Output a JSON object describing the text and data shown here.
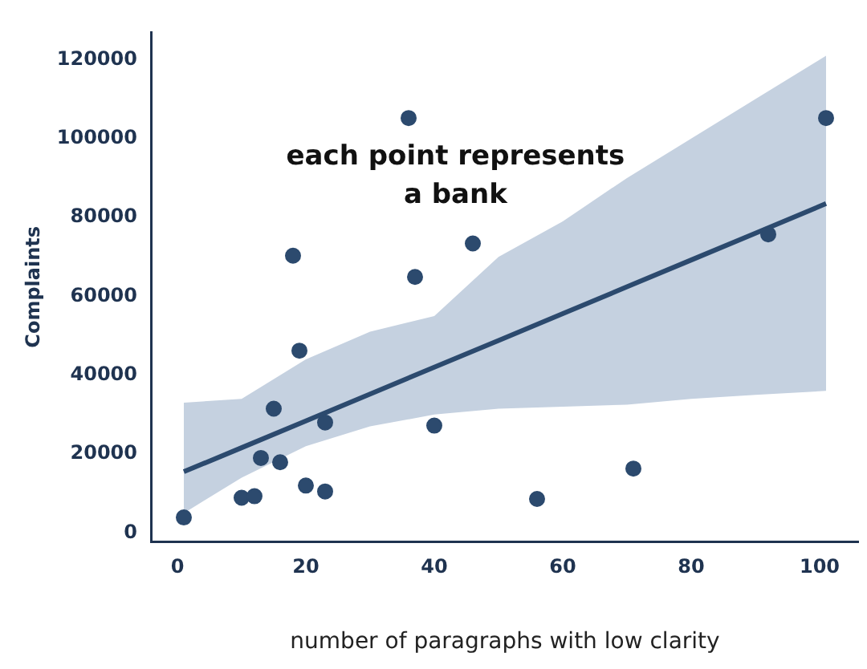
{
  "chart_data": {
    "type": "scatter",
    "xlabel": "number of paragraphs with low clarity",
    "ylabel": "Complaints",
    "annotations": [
      "each point represents\na bank"
    ],
    "xlim": [
      -4,
      106
    ],
    "ylim": [
      -2300,
      127000
    ],
    "xticks": [
      0,
      20,
      40,
      60,
      80,
      100
    ],
    "yticks": [
      0,
      20000,
      40000,
      60000,
      80000,
      100000,
      120000
    ],
    "grid": false,
    "legend": false,
    "marker": "circle",
    "series": [
      {
        "color": "#2c4a6e",
        "x": [
          1,
          10,
          12,
          13,
          15,
          16,
          19,
          20,
          23,
          23,
          40,
          56,
          71,
          36,
          18,
          37,
          46,
          101,
          92
        ],
        "values": [
          3900,
          8900,
          9300,
          19000,
          31500,
          17900,
          46200,
          12000,
          28000,
          10500,
          27200,
          8600,
          16300,
          105200,
          70300,
          64900,
          73400,
          105200,
          75700
        ]
      },
      {
        "type": "line",
        "color": "#2c4a6e",
        "line_style": "solid",
        "marker": "none",
        "x": [
          1,
          10,
          20,
          30,
          40,
          50,
          60,
          70,
          80,
          90,
          101
        ],
        "values": [
          15500,
          21600,
          28400,
          35200,
          42000,
          48800,
          55600,
          62400,
          69200,
          76000,
          83500
        ],
        "lower": [
          5000,
          14000,
          22000,
          27000,
          30000,
          31500,
          32000,
          32500,
          34000,
          35000,
          36000
        ],
        "upper": [
          33000,
          34000,
          44000,
          51000,
          55000,
          70000,
          79000,
          90000,
          100000,
          110000,
          121000
        ]
      }
    ]
  }
}
